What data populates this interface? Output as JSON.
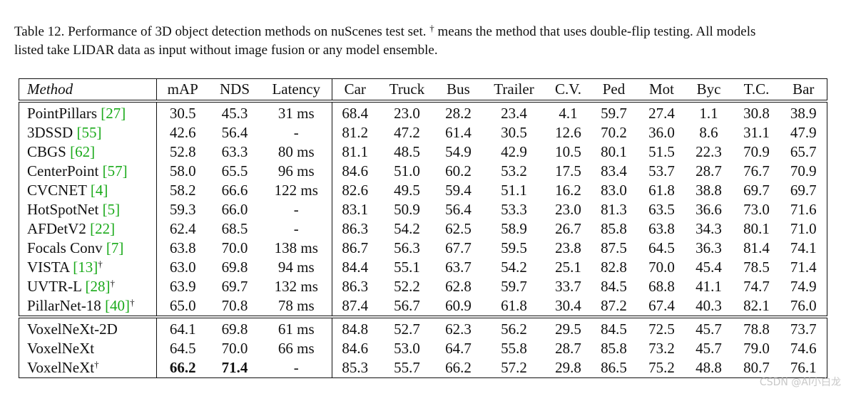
{
  "caption": {
    "line1_a": "Table 12. Performance of 3D object detection methods on nuScenes test set. ",
    "dagger": "†",
    "line1_b": " means the method that uses double-flip testing. All models",
    "line2": "listed take LIDAR data as input without image fusion or any model ensemble."
  },
  "header": [
    "Method",
    "mAP",
    "NDS",
    "Latency",
    "Car",
    "Truck",
    "Bus",
    "Trailer",
    "C.V.",
    "Ped",
    "Mot",
    "Byc",
    "T.C.",
    "Bar"
  ],
  "group1": [
    {
      "name": "PointPillars ",
      "ref": "[27]",
      "dagger": "",
      "cells": [
        "30.5",
        "45.3",
        "31 ms",
        "68.4",
        "23.0",
        "28.2",
        "23.4",
        "4.1",
        "59.7",
        "27.4",
        "1.1",
        "30.8",
        "38.9"
      ]
    },
    {
      "name": "3DSSD ",
      "ref": "[55]",
      "dagger": "",
      "cells": [
        "42.6",
        "56.4",
        "-",
        "81.2",
        "47.2",
        "61.4",
        "30.5",
        "12.6",
        "70.2",
        "36.0",
        "8.6",
        "31.1",
        "47.9"
      ]
    },
    {
      "name": "CBGS ",
      "ref": "[62]",
      "dagger": "",
      "cells": [
        "52.8",
        "63.3",
        "80 ms",
        "81.1",
        "48.5",
        "54.9",
        "42.9",
        "10.5",
        "80.1",
        "51.5",
        "22.3",
        "70.9",
        "65.7"
      ]
    },
    {
      "name": "CenterPoint ",
      "ref": "[57]",
      "dagger": "",
      "cells": [
        "58.0",
        "65.5",
        "96 ms",
        "84.6",
        "51.0",
        "60.2",
        "53.2",
        "17.5",
        "83.4",
        "53.7",
        "28.7",
        "76.7",
        "70.9"
      ]
    },
    {
      "name": "CVCNET ",
      "ref": "[4]",
      "dagger": "",
      "cells": [
        "58.2",
        "66.6",
        "122 ms",
        "82.6",
        "49.5",
        "59.4",
        "51.1",
        "16.2",
        "83.0",
        "61.8",
        "38.8",
        "69.7",
        "69.7"
      ]
    },
    {
      "name": "HotSpotNet ",
      "ref": "[5]",
      "dagger": "",
      "cells": [
        "59.3",
        "66.0",
        "-",
        "83.1",
        "50.9",
        "56.4",
        "53.3",
        "23.0",
        "81.3",
        "63.5",
        "36.6",
        "73.0",
        "71.6"
      ]
    },
    {
      "name": "AFDetV2 ",
      "ref": "[22]",
      "dagger": "",
      "cells": [
        "62.4",
        "68.5",
        "-",
        "86.3",
        "54.2",
        "62.5",
        "58.9",
        "26.7",
        "85.8",
        "63.8",
        "34.3",
        "80.1",
        "71.0"
      ]
    },
    {
      "name": "Focals Conv ",
      "ref": "[7]",
      "dagger": "",
      "cells": [
        "63.8",
        "70.0",
        "138 ms",
        "86.7",
        "56.3",
        "67.7",
        "59.5",
        "23.8",
        "87.5",
        "64.5",
        "36.3",
        "81.4",
        "74.1"
      ]
    },
    {
      "name": "VISTA ",
      "ref": "[13]",
      "dagger": "†",
      "cells": [
        "63.0",
        "69.8",
        "94 ms",
        "84.4",
        "55.1",
        "63.7",
        "54.2",
        "25.1",
        "82.8",
        "70.0",
        "45.4",
        "78.5",
        "71.4"
      ]
    },
    {
      "name": "UVTR-L ",
      "ref": "[28]",
      "dagger": "†",
      "cells": [
        "63.9",
        "69.7",
        "132 ms",
        "86.3",
        "52.2",
        "62.8",
        "59.7",
        "33.7",
        "84.5",
        "68.8",
        "41.1",
        "74.7",
        "74.9"
      ]
    },
    {
      "name": "PillarNet-18 ",
      "ref": "[40]",
      "dagger": "†",
      "cells": [
        "65.0",
        "70.8",
        "78 ms",
        "87.4",
        "56.7",
        "60.9",
        "61.8",
        "30.4",
        "87.2",
        "67.4",
        "40.3",
        "82.1",
        "76.0"
      ]
    }
  ],
  "group2": [
    {
      "name": "VoxelNeXt-2D",
      "ref": "",
      "dagger": "",
      "cells": [
        "64.1",
        "69.8",
        "61 ms",
        "84.8",
        "52.7",
        "62.3",
        "56.2",
        "29.5",
        "84.5",
        "72.5",
        "45.7",
        "78.8",
        "73.7"
      ]
    },
    {
      "name": "VoxelNeXt",
      "ref": "",
      "dagger": "",
      "cells": [
        "64.5",
        "70.0",
        "66 ms",
        "84.6",
        "53.0",
        "64.7",
        "55.8",
        "28.7",
        "85.8",
        "73.2",
        "45.7",
        "79.0",
        "74.6"
      ]
    },
    {
      "name": "VoxelNeXt",
      "ref": "",
      "dagger": "†",
      "cells": [
        "66.2",
        "71.4",
        "-",
        "85.3",
        "55.7",
        "66.2",
        "57.2",
        "29.8",
        "86.5",
        "75.2",
        "48.8",
        "80.7",
        "76.1"
      ]
    }
  ],
  "watermark": "CSDN @AI小白龙"
}
